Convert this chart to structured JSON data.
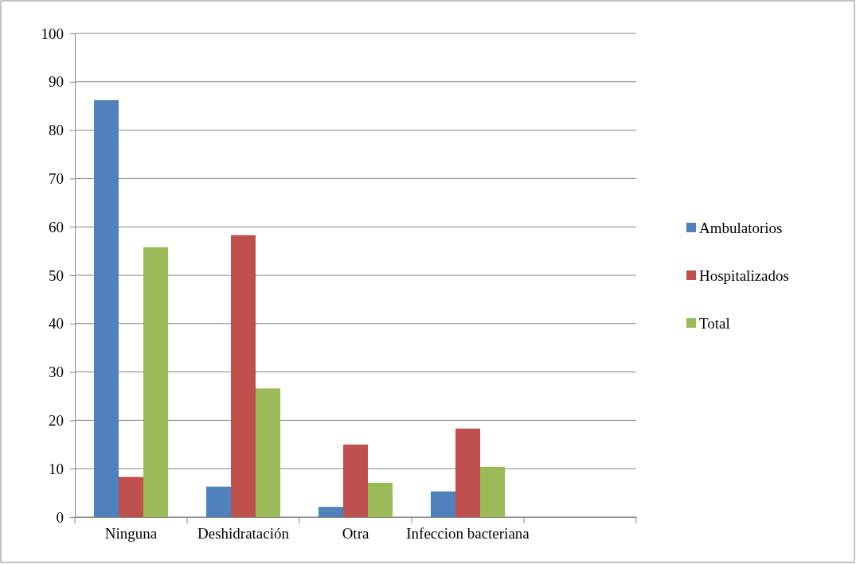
{
  "chart_data": {
    "type": "bar",
    "categories": [
      "Ninguna",
      "Deshidratación",
      "Otra",
      "Infeccion bacteriana",
      null
    ],
    "series": [
      {
        "name": "Ambulatorios",
        "color": "#4f81bd",
        "values": [
          86.2,
          6.3,
          2.1,
          5.3,
          null
        ]
      },
      {
        "name": "Hospitalizados",
        "color": "#c0504d",
        "values": [
          8.3,
          58.3,
          15.0,
          18.3,
          null
        ]
      },
      {
        "name": "Total",
        "color": "#9bbb59",
        "values": [
          55.8,
          26.6,
          7.1,
          10.4,
          null
        ]
      }
    ],
    "ylim": [
      0,
      100
    ],
    "yticks": [
      0,
      10,
      20,
      30,
      40,
      50,
      60,
      70,
      80,
      90,
      100
    ],
    "grid": "y",
    "legend": "right"
  }
}
